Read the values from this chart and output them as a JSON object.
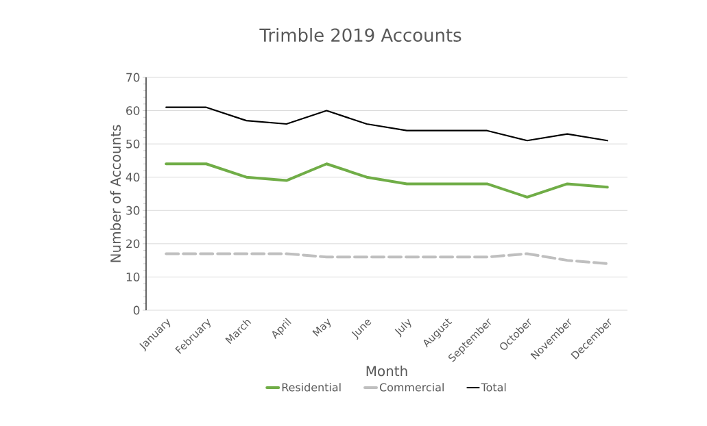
{
  "chart_data": {
    "type": "line",
    "title": "Trimble 2019 Accounts",
    "xlabel": "Month",
    "ylabel": "Number of Accounts",
    "categories": [
      "January",
      "February",
      "March",
      "April",
      "May",
      "June",
      "July",
      "August",
      "September",
      "October",
      "November",
      "December"
    ],
    "series": [
      {
        "name": "Residential",
        "color": "#70ad47",
        "line_style": "solid",
        "values": [
          44,
          44,
          40,
          39,
          44,
          40,
          38,
          38,
          38,
          34,
          38,
          37
        ]
      },
      {
        "name": "Commercial",
        "color": "#bfbfbf",
        "line_style": "dashed",
        "values": [
          17,
          17,
          17,
          17,
          16,
          16,
          16,
          16,
          16,
          17,
          15,
          14
        ]
      },
      {
        "name": "Total",
        "color": "#000000",
        "line_style": "solid",
        "values": [
          61,
          61,
          57,
          56,
          60,
          56,
          54,
          54,
          54,
          51,
          53,
          51
        ]
      }
    ],
    "ylim": [
      0,
      70
    ],
    "yticks": [
      0,
      10,
      20,
      30,
      40,
      50,
      60,
      70
    ],
    "grid": "y",
    "legend": "bottom",
    "marker": "none"
  }
}
